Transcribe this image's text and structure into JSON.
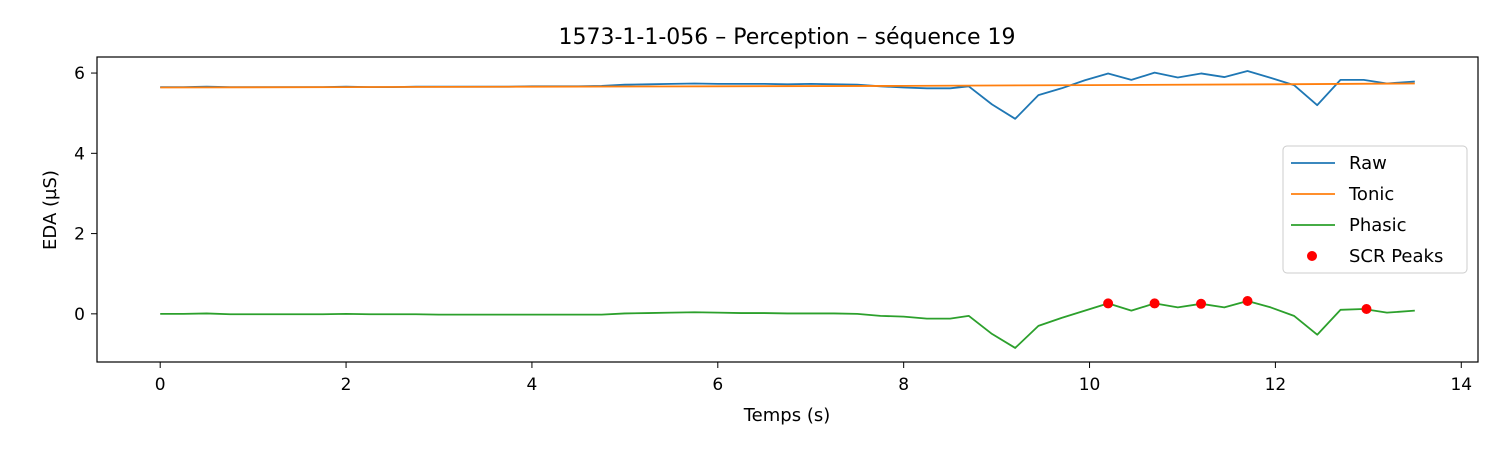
{
  "chart_data": {
    "type": "line",
    "title": "1573-1-1-056 – Perception – séquence 19",
    "xlabel": "Temps (s)",
    "ylabel": "EDA (µS)",
    "xlim": [
      -0.68,
      14.18
    ],
    "ylim": [
      -1.2,
      6.4
    ],
    "xticks": [
      0,
      2,
      4,
      6,
      8,
      10,
      12,
      14
    ],
    "yticks": [
      0,
      2,
      4,
      6
    ],
    "grid": false,
    "legend_placement": "center-right",
    "series": [
      {
        "name": "Raw",
        "color": "#1f77b4",
        "x": [
          0,
          0.25,
          0.5,
          0.75,
          1.0,
          1.25,
          1.5,
          1.75,
          2.0,
          2.25,
          2.5,
          2.75,
          3.0,
          3.25,
          3.5,
          3.75,
          4.0,
          4.25,
          4.5,
          4.75,
          5.0,
          5.25,
          5.5,
          5.75,
          6.0,
          6.25,
          6.5,
          6.75,
          7.0,
          7.25,
          7.5,
          7.75,
          8.0,
          8.25,
          8.5,
          8.7,
          8.95,
          9.2,
          9.45,
          9.7,
          9.95,
          10.2,
          10.45,
          10.7,
          10.95,
          11.2,
          11.45,
          11.7,
          11.95,
          12.2,
          12.45,
          12.7,
          12.95,
          13.2,
          13.5
        ],
        "y": [
          5.65,
          5.65,
          5.66,
          5.65,
          5.65,
          5.65,
          5.65,
          5.65,
          5.66,
          5.65,
          5.65,
          5.66,
          5.66,
          5.66,
          5.66,
          5.66,
          5.67,
          5.67,
          5.67,
          5.68,
          5.71,
          5.72,
          5.73,
          5.74,
          5.73,
          5.73,
          5.73,
          5.72,
          5.73,
          5.72,
          5.71,
          5.67,
          5.64,
          5.62,
          5.62,
          5.67,
          5.22,
          4.86,
          5.45,
          5.62,
          5.82,
          5.99,
          5.83,
          6.01,
          5.89,
          5.99,
          5.9,
          6.05,
          5.88,
          5.7,
          5.2,
          5.83,
          5.83,
          5.74,
          5.79
        ]
      },
      {
        "name": "Tonic",
        "color": "#ff7f0e",
        "x": [
          0,
          2,
          4,
          6,
          8,
          10,
          12,
          13.5
        ],
        "y": [
          5.64,
          5.65,
          5.66,
          5.67,
          5.68,
          5.7,
          5.72,
          5.74
        ]
      },
      {
        "name": "Phasic",
        "color": "#2ca02c",
        "x": [
          0,
          0.25,
          0.5,
          0.75,
          1.0,
          1.25,
          1.5,
          1.75,
          2.0,
          2.25,
          2.5,
          2.75,
          3.0,
          3.25,
          3.5,
          3.75,
          4.0,
          4.25,
          4.5,
          4.75,
          5.0,
          5.25,
          5.5,
          5.75,
          6.0,
          6.25,
          6.5,
          6.75,
          7.0,
          7.25,
          7.5,
          7.75,
          8.0,
          8.25,
          8.5,
          8.7,
          8.95,
          9.2,
          9.45,
          9.7,
          9.95,
          10.2,
          10.45,
          10.7,
          10.95,
          11.2,
          11.45,
          11.7,
          11.95,
          12.2,
          12.45,
          12.7,
          12.95,
          13.2,
          13.5
        ],
        "y": [
          0.0,
          0.0,
          0.01,
          -0.01,
          -0.01,
          -0.01,
          -0.01,
          -0.01,
          0.0,
          -0.01,
          -0.01,
          -0.01,
          -0.02,
          -0.02,
          -0.02,
          -0.02,
          -0.02,
          -0.02,
          -0.02,
          -0.02,
          0.01,
          0.02,
          0.03,
          0.04,
          0.03,
          0.02,
          0.02,
          0.01,
          0.01,
          0.01,
          0.0,
          -0.05,
          -0.07,
          -0.12,
          -0.12,
          -0.05,
          -0.5,
          -0.85,
          -0.3,
          -0.1,
          0.08,
          0.26,
          0.08,
          0.26,
          0.16,
          0.25,
          0.16,
          0.32,
          0.16,
          -0.05,
          -0.52,
          0.1,
          0.12,
          0.03,
          0.08
        ]
      },
      {
        "name": "SCR Peaks",
        "type": "scatter",
        "color": "#ff0000",
        "x": [
          10.2,
          10.7,
          11.2,
          11.7,
          12.98
        ],
        "y": [
          0.26,
          0.26,
          0.25,
          0.32,
          0.12
        ]
      }
    ]
  }
}
